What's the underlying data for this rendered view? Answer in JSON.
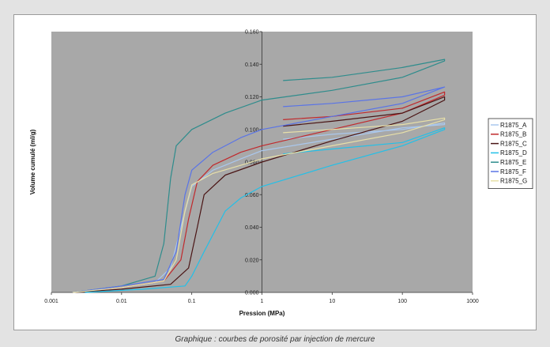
{
  "caption": "Graphique : courbes de porosité par injection de mercure",
  "chart_data": {
    "type": "line",
    "title": "",
    "xlabel": "Pression (MPa)",
    "ylabel": "Volume cumulé (ml/g)",
    "x_scale": "log",
    "xlim": [
      0.001,
      1000
    ],
    "ylim": [
      0,
      0.16
    ],
    "x_ticks": [
      "0.001",
      "0.01",
      "0.1",
      "1",
      "10",
      "100",
      "1000"
    ],
    "y_ticks": [
      "0.000",
      "0.020",
      "0.040",
      "0.060",
      "0.080",
      "0.100",
      "0.120",
      "0.140",
      "0.160"
    ],
    "grid": false,
    "legend_position": "right",
    "series": [
      {
        "name": "R1875_A",
        "color": "#aac8ee",
        "values": [
          [
            0.002,
            0
          ],
          [
            0.01,
            0.003
          ],
          [
            0.03,
            0.006
          ],
          [
            0.05,
            0.015
          ],
          [
            0.07,
            0.04
          ],
          [
            0.1,
            0.065
          ],
          [
            0.2,
            0.075
          ],
          [
            0.5,
            0.082
          ],
          [
            1,
            0.087
          ],
          [
            10,
            0.094
          ],
          [
            100,
            0.101
          ],
          [
            400,
            0.103
          ],
          [
            400,
            0.104
          ],
          [
            100,
            0.1
          ],
          [
            10,
            0.097
          ],
          [
            2,
            0.094
          ]
        ]
      },
      {
        "name": "R1875_B",
        "color": "#c0292c",
        "values": [
          [
            0.002,
            0
          ],
          [
            0.01,
            0.003
          ],
          [
            0.04,
            0.007
          ],
          [
            0.07,
            0.02
          ],
          [
            0.09,
            0.045
          ],
          [
            0.12,
            0.068
          ],
          [
            0.2,
            0.078
          ],
          [
            0.5,
            0.086
          ],
          [
            1,
            0.09
          ],
          [
            10,
            0.1
          ],
          [
            100,
            0.11
          ],
          [
            400,
            0.121
          ],
          [
            400,
            0.123
          ],
          [
            100,
            0.113
          ],
          [
            10,
            0.108
          ],
          [
            2,
            0.106
          ]
        ]
      },
      {
        "name": "R1875_C",
        "color": "#4a1515",
        "values": [
          [
            0.002,
            0
          ],
          [
            0.01,
            0.002
          ],
          [
            0.05,
            0.005
          ],
          [
            0.09,
            0.015
          ],
          [
            0.12,
            0.04
          ],
          [
            0.15,
            0.06
          ],
          [
            0.3,
            0.072
          ],
          [
            1,
            0.08
          ],
          [
            10,
            0.093
          ],
          [
            100,
            0.105
          ],
          [
            400,
            0.118
          ],
          [
            400,
            0.12
          ],
          [
            100,
            0.11
          ],
          [
            10,
            0.105
          ],
          [
            2,
            0.102
          ]
        ]
      },
      {
        "name": "R1875_D",
        "color": "#22c0e8",
        "values": [
          [
            0.003,
            0
          ],
          [
            0.02,
            0.002
          ],
          [
            0.08,
            0.004
          ],
          [
            0.1,
            0.01
          ],
          [
            0.15,
            0.025
          ],
          [
            0.3,
            0.05
          ],
          [
            0.5,
            0.058
          ],
          [
            1,
            0.065
          ],
          [
            10,
            0.078
          ],
          [
            100,
            0.09
          ],
          [
            400,
            0.1
          ],
          [
            400,
            0.101
          ],
          [
            100,
            0.092
          ],
          [
            10,
            0.088
          ],
          [
            2,
            0.085
          ]
        ]
      },
      {
        "name": "R1875_E",
        "color": "#2e8c8c",
        "values": [
          [
            0.002,
            0
          ],
          [
            0.01,
            0.004
          ],
          [
            0.03,
            0.01
          ],
          [
            0.04,
            0.03
          ],
          [
            0.05,
            0.07
          ],
          [
            0.06,
            0.09
          ],
          [
            0.1,
            0.1
          ],
          [
            0.3,
            0.11
          ],
          [
            1,
            0.118
          ],
          [
            10,
            0.124
          ],
          [
            100,
            0.132
          ],
          [
            400,
            0.142
          ],
          [
            400,
            0.143
          ],
          [
            100,
            0.138
          ],
          [
            10,
            0.132
          ],
          [
            2,
            0.13
          ]
        ]
      },
      {
        "name": "R1875_F",
        "color": "#5a74e6",
        "values": [
          [
            0.002,
            0
          ],
          [
            0.01,
            0.004
          ],
          [
            0.04,
            0.008
          ],
          [
            0.06,
            0.025
          ],
          [
            0.08,
            0.06
          ],
          [
            0.1,
            0.075
          ],
          [
            0.2,
            0.086
          ],
          [
            0.5,
            0.095
          ],
          [
            1,
            0.1
          ],
          [
            10,
            0.108
          ],
          [
            100,
            0.116
          ],
          [
            400,
            0.126
          ],
          [
            400,
            0.126
          ],
          [
            100,
            0.12
          ],
          [
            10,
            0.116
          ],
          [
            2,
            0.114
          ]
        ]
      },
      {
        "name": "R1875_G",
        "color": "#e8e0a8",
        "values": [
          [
            0.002,
            0
          ],
          [
            0.01,
            0.003
          ],
          [
            0.04,
            0.007
          ],
          [
            0.06,
            0.02
          ],
          [
            0.08,
            0.05
          ],
          [
            0.1,
            0.066
          ],
          [
            0.2,
            0.073
          ],
          [
            0.5,
            0.078
          ],
          [
            1,
            0.082
          ],
          [
            10,
            0.09
          ],
          [
            100,
            0.098
          ],
          [
            400,
            0.106
          ],
          [
            400,
            0.107
          ],
          [
            100,
            0.103
          ],
          [
            10,
            0.1
          ],
          [
            2,
            0.098
          ]
        ]
      }
    ]
  }
}
